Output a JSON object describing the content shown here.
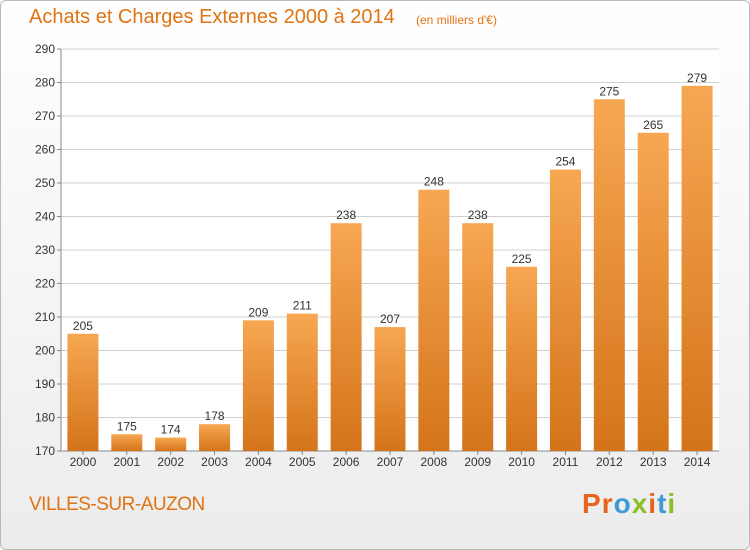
{
  "header": {
    "title": "Achats et Charges Externes 2000 à 2014",
    "unit": "(en milliers d'€)"
  },
  "footer": {
    "commune": "VILLES-SUR-AUZON",
    "logo_letters": [
      "P",
      "r",
      "o",
      "x",
      "i",
      "t",
      "i"
    ]
  },
  "colors": {
    "accent": "#e07312",
    "bar_top": "#f7a752",
    "bar_bottom": "#d4741a",
    "grid": "#d0d0d0",
    "logo": [
      "#e8641b",
      "#e8641b",
      "#3e9bd6",
      "#8cbf26",
      "#e8641b",
      "#3e9bd6",
      "#8cbf26"
    ]
  },
  "chart_data": {
    "type": "bar",
    "categories": [
      "2000",
      "2001",
      "2002",
      "2003",
      "2004",
      "2005",
      "2006",
      "2007",
      "2008",
      "2009",
      "2010",
      "2011",
      "2012",
      "2013",
      "2014"
    ],
    "values": [
      205,
      175,
      174,
      178,
      209,
      211,
      238,
      207,
      248,
      238,
      225,
      254,
      275,
      265,
      279
    ],
    "data_labels": [
      "205",
      "175",
      "174",
      "178",
      "209",
      "211",
      "238",
      "207",
      "248",
      "238",
      "225",
      "254",
      "275",
      "265",
      "279"
    ],
    "ylim": [
      170,
      290
    ],
    "yticks": [
      "170",
      "180",
      "190",
      "200",
      "210",
      "220",
      "230",
      "240",
      "250",
      "260",
      "270",
      "280",
      "290"
    ],
    "grid": true
  }
}
